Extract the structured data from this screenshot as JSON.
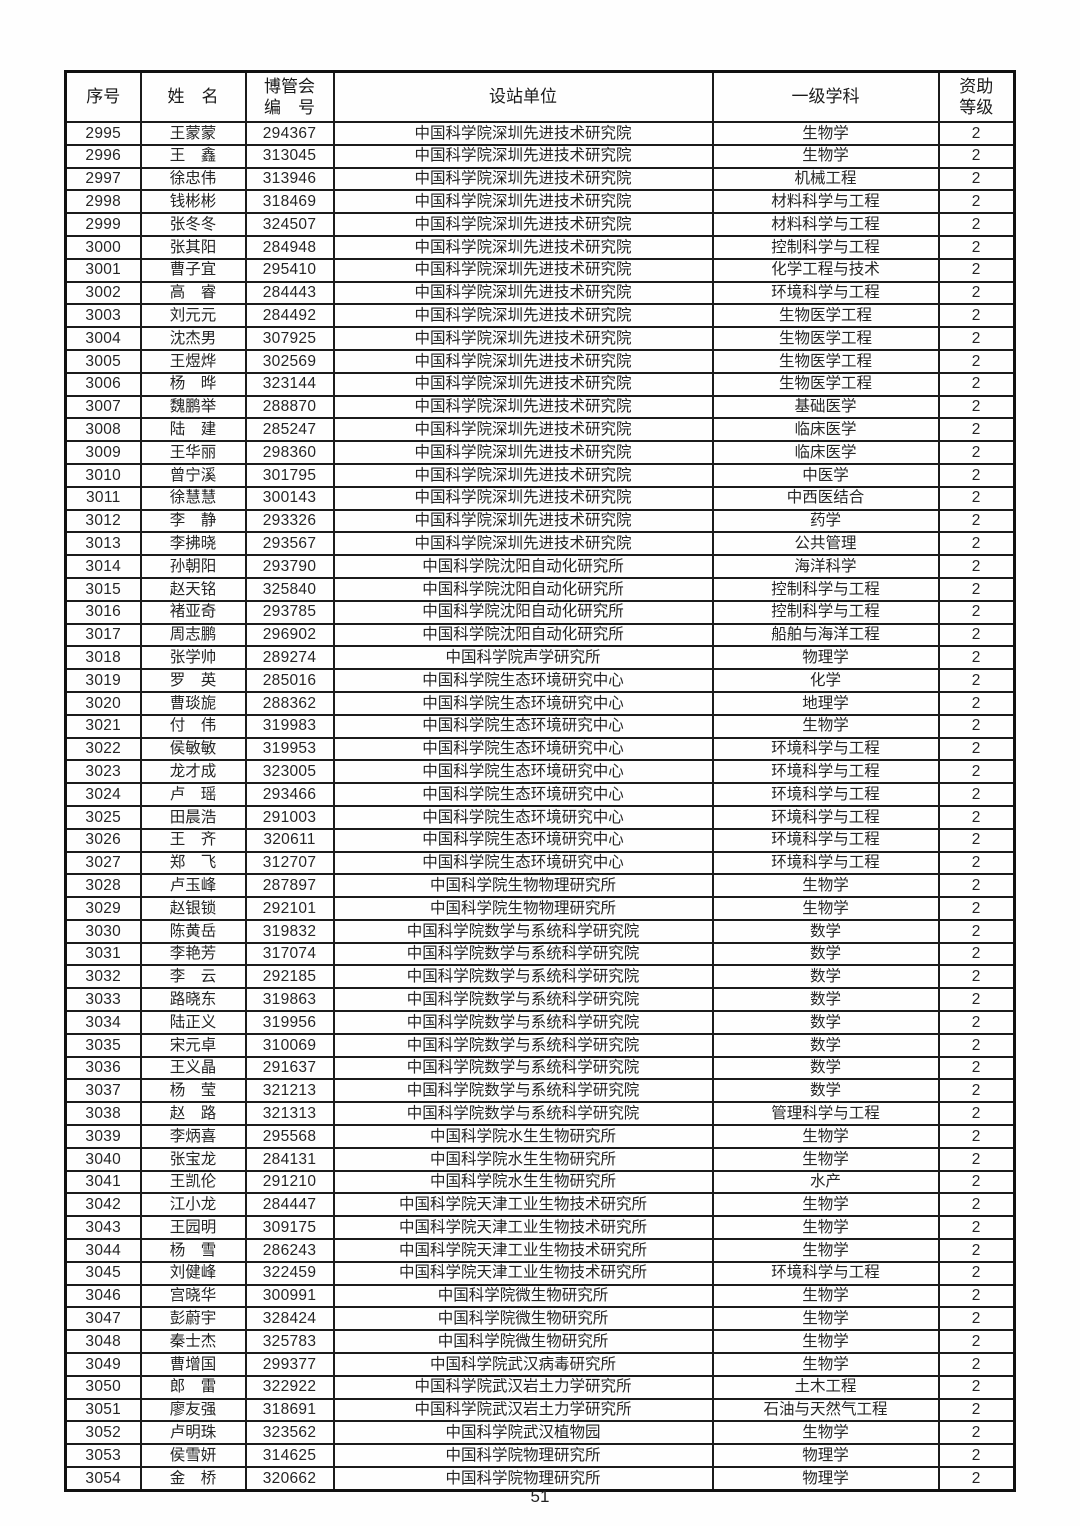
{
  "page": {
    "number": "51"
  },
  "table": {
    "headers": {
      "serial": "序号",
      "name": "姓　名",
      "id_line1": "博管会",
      "id_line2": "编　号",
      "unit": "设站单位",
      "discipline": "一级学科",
      "grade_line1": "资助",
      "grade_line2": "等级"
    },
    "rows": [
      [
        "2995",
        "王蒙蒙",
        "294367",
        "中国科学院深圳先进技术研究院",
        "生物学",
        "2"
      ],
      [
        "2996",
        "王　鑫",
        "313045",
        "中国科学院深圳先进技术研究院",
        "生物学",
        "2"
      ],
      [
        "2997",
        "徐忠伟",
        "313946",
        "中国科学院深圳先进技术研究院",
        "机械工程",
        "2"
      ],
      [
        "2998",
        "钱彬彬",
        "318469",
        "中国科学院深圳先进技术研究院",
        "材料科学与工程",
        "2"
      ],
      [
        "2999",
        "张冬冬",
        "324507",
        "中国科学院深圳先进技术研究院",
        "材料科学与工程",
        "2"
      ],
      [
        "3000",
        "张其阳",
        "284948",
        "中国科学院深圳先进技术研究院",
        "控制科学与工程",
        "2"
      ],
      [
        "3001",
        "曹子宜",
        "295410",
        "中国科学院深圳先进技术研究院",
        "化学工程与技术",
        "2"
      ],
      [
        "3002",
        "高　睿",
        "284443",
        "中国科学院深圳先进技术研究院",
        "环境科学与工程",
        "2"
      ],
      [
        "3003",
        "刘元元",
        "284492",
        "中国科学院深圳先进技术研究院",
        "生物医学工程",
        "2"
      ],
      [
        "3004",
        "沈杰男",
        "307925",
        "中国科学院深圳先进技术研究院",
        "生物医学工程",
        "2"
      ],
      [
        "3005",
        "王煜烨",
        "302569",
        "中国科学院深圳先进技术研究院",
        "生物医学工程",
        "2"
      ],
      [
        "3006",
        "杨　晔",
        "323144",
        "中国科学院深圳先进技术研究院",
        "生物医学工程",
        "2"
      ],
      [
        "3007",
        "魏鹏举",
        "288870",
        "中国科学院深圳先进技术研究院",
        "基础医学",
        "2"
      ],
      [
        "3008",
        "陆　建",
        "285247",
        "中国科学院深圳先进技术研究院",
        "临床医学",
        "2"
      ],
      [
        "3009",
        "王华丽",
        "298360",
        "中国科学院深圳先进技术研究院",
        "临床医学",
        "2"
      ],
      [
        "3010",
        "曾宁溪",
        "301795",
        "中国科学院深圳先进技术研究院",
        "中医学",
        "2"
      ],
      [
        "3011",
        "徐慧慧",
        "300143",
        "中国科学院深圳先进技术研究院",
        "中西医结合",
        "2"
      ],
      [
        "3012",
        "李　静",
        "293326",
        "中国科学院深圳先进技术研究院",
        "药学",
        "2"
      ],
      [
        "3013",
        "李拂晓",
        "293567",
        "中国科学院深圳先进技术研究院",
        "公共管理",
        "2"
      ],
      [
        "3014",
        "孙朝阳",
        "293790",
        "中国科学院沈阳自动化研究所",
        "海洋科学",
        "2"
      ],
      [
        "3015",
        "赵天铭",
        "325840",
        "中国科学院沈阳自动化研究所",
        "控制科学与工程",
        "2"
      ],
      [
        "3016",
        "褚亚奇",
        "293785",
        "中国科学院沈阳自动化研究所",
        "控制科学与工程",
        "2"
      ],
      [
        "3017",
        "周志鹏",
        "296902",
        "中国科学院沈阳自动化研究所",
        "船舶与海洋工程",
        "2"
      ],
      [
        "3018",
        "张学帅",
        "289274",
        "中国科学院声学研究所",
        "物理学",
        "2"
      ],
      [
        "3019",
        "罗　英",
        "285016",
        "中国科学院生态环境研究中心",
        "化学",
        "2"
      ],
      [
        "3020",
        "曹琰旎",
        "288362",
        "中国科学院生态环境研究中心",
        "地理学",
        "2"
      ],
      [
        "3021",
        "付　伟",
        "319983",
        "中国科学院生态环境研究中心",
        "生物学",
        "2"
      ],
      [
        "3022",
        "侯敏敏",
        "319953",
        "中国科学院生态环境研究中心",
        "环境科学与工程",
        "2"
      ],
      [
        "3023",
        "龙才成",
        "323005",
        "中国科学院生态环境研究中心",
        "环境科学与工程",
        "2"
      ],
      [
        "3024",
        "卢　瑶",
        "293466",
        "中国科学院生态环境研究中心",
        "环境科学与工程",
        "2"
      ],
      [
        "3025",
        "田晨浩",
        "291003",
        "中国科学院生态环境研究中心",
        "环境科学与工程",
        "2"
      ],
      [
        "3026",
        "王　齐",
        "320611",
        "中国科学院生态环境研究中心",
        "环境科学与工程",
        "2"
      ],
      [
        "3027",
        "郑　飞",
        "312707",
        "中国科学院生态环境研究中心",
        "环境科学与工程",
        "2"
      ],
      [
        "3028",
        "卢玉峰",
        "287897",
        "中国科学院生物物理研究所",
        "生物学",
        "2"
      ],
      [
        "3029",
        "赵银锁",
        "292101",
        "中国科学院生物物理研究所",
        "生物学",
        "2"
      ],
      [
        "3030",
        "陈黄岳",
        "319832",
        "中国科学院数学与系统科学研究院",
        "数学",
        "2"
      ],
      [
        "3031",
        "李艳芳",
        "317074",
        "中国科学院数学与系统科学研究院",
        "数学",
        "2"
      ],
      [
        "3032",
        "李　云",
        "292185",
        "中国科学院数学与系统科学研究院",
        "数学",
        "2"
      ],
      [
        "3033",
        "路晓东",
        "319863",
        "中国科学院数学与系统科学研究院",
        "数学",
        "2"
      ],
      [
        "3034",
        "陆正义",
        "319956",
        "中国科学院数学与系统科学研究院",
        "数学",
        "2"
      ],
      [
        "3035",
        "宋元卓",
        "310069",
        "中国科学院数学与系统科学研究院",
        "数学",
        "2"
      ],
      [
        "3036",
        "王义晶",
        "291637",
        "中国科学院数学与系统科学研究院",
        "数学",
        "2"
      ],
      [
        "3037",
        "杨　莹",
        "321213",
        "中国科学院数学与系统科学研究院",
        "数学",
        "2"
      ],
      [
        "3038",
        "赵　路",
        "321313",
        "中国科学院数学与系统科学研究院",
        "管理科学与工程",
        "2"
      ],
      [
        "3039",
        "李炳喜",
        "295568",
        "中国科学院水生生物研究所",
        "生物学",
        "2"
      ],
      [
        "3040",
        "张宝龙",
        "284131",
        "中国科学院水生生物研究所",
        "生物学",
        "2"
      ],
      [
        "3041",
        "王凯伦",
        "291210",
        "中国科学院水生生物研究所",
        "水产",
        "2"
      ],
      [
        "3042",
        "江小龙",
        "284447",
        "中国科学院天津工业生物技术研究所",
        "生物学",
        "2"
      ],
      [
        "3043",
        "王园明",
        "309175",
        "中国科学院天津工业生物技术研究所",
        "生物学",
        "2"
      ],
      [
        "3044",
        "杨　雪",
        "286243",
        "中国科学院天津工业生物技术研究所",
        "生物学",
        "2"
      ],
      [
        "3045",
        "刘健峰",
        "322459",
        "中国科学院天津工业生物技术研究所",
        "环境科学与工程",
        "2"
      ],
      [
        "3046",
        "宫晓华",
        "300991",
        "中国科学院微生物研究所",
        "生物学",
        "2"
      ],
      [
        "3047",
        "彭蔚宇",
        "328424",
        "中国科学院微生物研究所",
        "生物学",
        "2"
      ],
      [
        "3048",
        "秦士杰",
        "325783",
        "中国科学院微生物研究所",
        "生物学",
        "2"
      ],
      [
        "3049",
        "曹增国",
        "299377",
        "中国科学院武汉病毒研究所",
        "生物学",
        "2"
      ],
      [
        "3050",
        "郎　雷",
        "322922",
        "中国科学院武汉岩土力学研究所",
        "土木工程",
        "2"
      ],
      [
        "3051",
        "廖友强",
        "318691",
        "中国科学院武汉岩土力学研究所",
        "石油与天然气工程",
        "2"
      ],
      [
        "3052",
        "卢明珠",
        "323562",
        "中国科学院武汉植物园",
        "生物学",
        "2"
      ],
      [
        "3053",
        "侯雪妍",
        "314625",
        "中国科学院物理研究所",
        "物理学",
        "2"
      ],
      [
        "3054",
        "金　桥",
        "320662",
        "中国科学院物理研究所",
        "物理学",
        "2"
      ]
    ]
  }
}
